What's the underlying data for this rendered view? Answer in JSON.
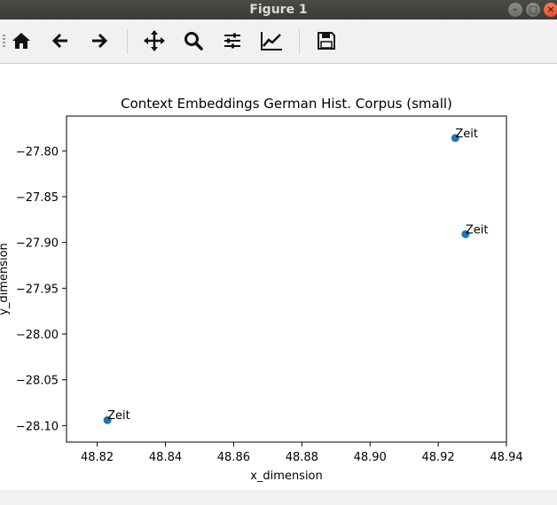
{
  "window": {
    "title": "Figure 1"
  },
  "toolbar": {
    "buttons": [
      {
        "name": "home-button",
        "icon": "home-icon"
      },
      {
        "name": "back-button",
        "icon": "arrow-left-icon"
      },
      {
        "name": "forward-button",
        "icon": "arrow-right-icon"
      },
      {
        "name": "pan-button",
        "icon": "move-icon"
      },
      {
        "name": "zoom-button",
        "icon": "magnifier-icon"
      },
      {
        "name": "configure-subplots-button",
        "icon": "sliders-icon"
      },
      {
        "name": "edit-axes-button",
        "icon": "chart-line-icon"
      },
      {
        "name": "save-button",
        "icon": "floppy-disk-icon"
      }
    ]
  },
  "chart_data": {
    "type": "scatter",
    "title": "Context Embeddings German Hist. Corpus (small)",
    "xlabel": "x_dimension",
    "ylabel": "y_dimension",
    "xlim": [
      48.811,
      48.94
    ],
    "ylim": [
      -28.118,
      -27.762
    ],
    "xticks": [
      48.82,
      48.84,
      48.86,
      48.88,
      48.9,
      48.92,
      48.94
    ],
    "xtick_labels": [
      "48.82",
      "48.84",
      "48.86",
      "48.88",
      "48.90",
      "48.92",
      "48.94"
    ],
    "yticks": [
      -27.8,
      -27.85,
      -27.9,
      -27.95,
      -28.0,
      -28.05,
      -28.1
    ],
    "ytick_labels": [
      "−27.80",
      "−27.85",
      "−27.90",
      "−27.95",
      "−28.00",
      "−28.05",
      "−28.10"
    ],
    "grid": false,
    "marker_color": "#1f77b4",
    "points": [
      {
        "x": 48.925,
        "y": -27.786,
        "label": "Zeit"
      },
      {
        "x": 48.928,
        "y": -27.891,
        "label": "Zeit"
      },
      {
        "x": 48.823,
        "y": -28.094,
        "label": "Zeit"
      }
    ]
  }
}
